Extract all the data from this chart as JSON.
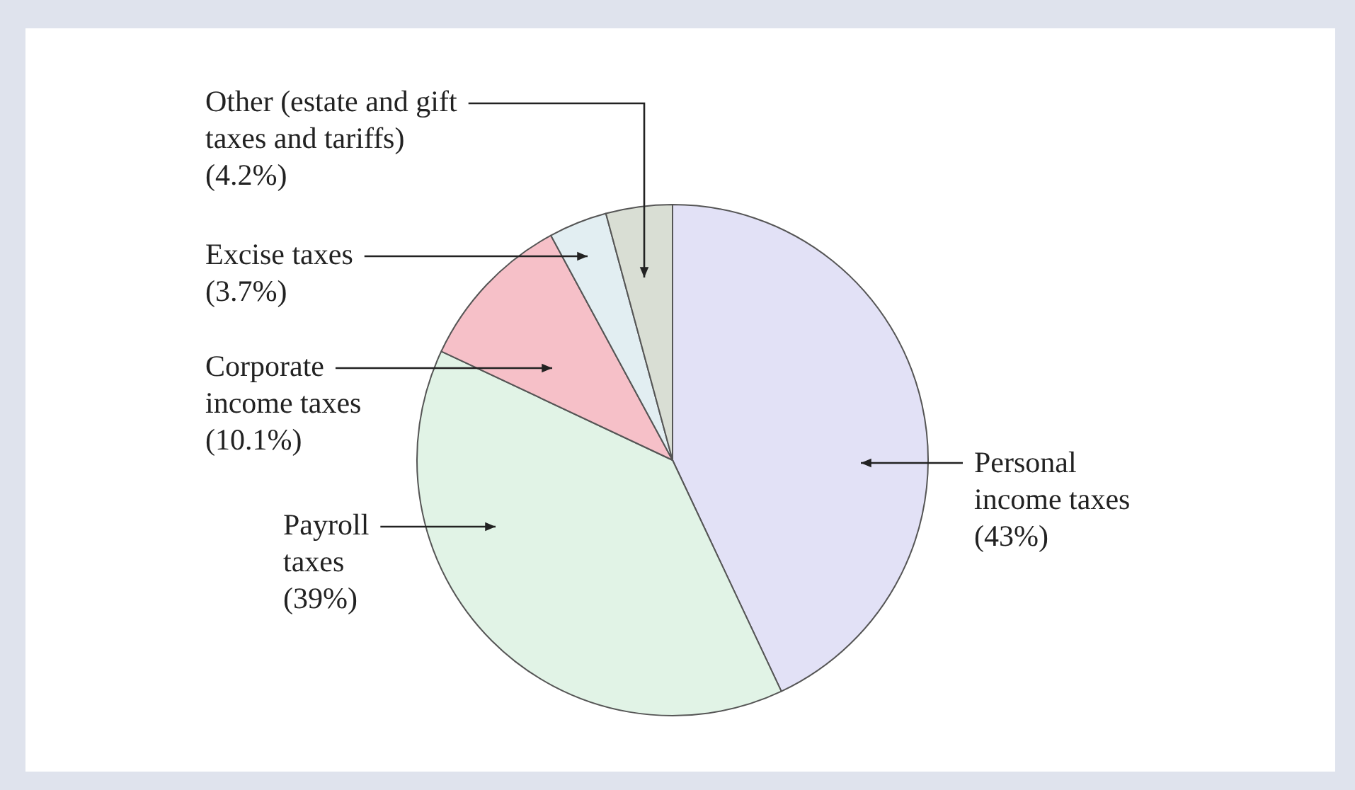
{
  "chart_data": {
    "type": "pie",
    "categories": [
      "Personal income taxes",
      "Payroll taxes",
      "Corporate income taxes",
      "Excise taxes",
      "Other (estate and gift taxes and tariffs)"
    ],
    "values": [
      43,
      39,
      10.1,
      3.7,
      4.2
    ],
    "value_labels": [
      "(43%)",
      "(39%)",
      "(10.1%)",
      "(3.7%)",
      "(4.2%)"
    ],
    "colors": [
      "#e2e1f6",
      "#e1f3e6",
      "#f6c0c8",
      "#e2eef2",
      "#d9ded4"
    ],
    "legend": false
  }
}
